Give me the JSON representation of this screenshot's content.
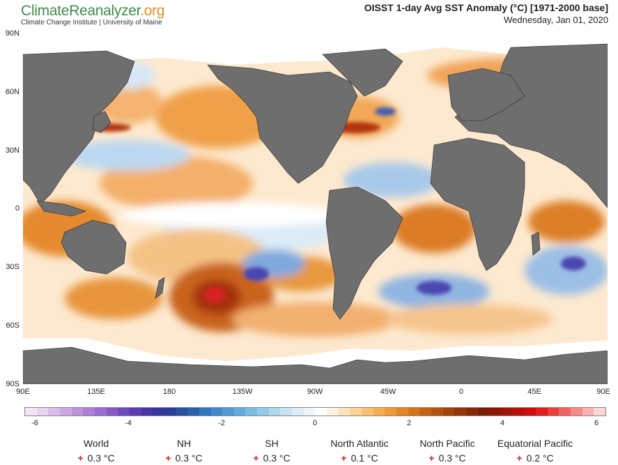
{
  "brand": {
    "part1": "ClimateReanalyzer",
    "part2": ".org",
    "subtitle": "Climate Change Institute | University of Maine"
  },
  "title": "OISST 1-day Avg SST Anomaly (°C) [1971-2000 base]",
  "date": "Wednesday, Jan 01, 2020",
  "map": {
    "lat_labels": [
      "90N",
      "60N",
      "30N",
      "0",
      "30S",
      "60S",
      "90S"
    ],
    "lon_labels": [
      "90E",
      "135E",
      "180",
      "135W",
      "90W",
      "45W",
      "0",
      "45E",
      "90E"
    ],
    "land_color": "#6e6e6e",
    "sea_ice_color": "#ffffff"
  },
  "colorbar": {
    "ticks": [
      "-6",
      "-4",
      "-2",
      "0",
      "2",
      "4",
      "6"
    ],
    "colors": [
      "#f5e6f7",
      "#ead2f1",
      "#dcbceb",
      "#cda7e4",
      "#bf92dd",
      "#ad7fd6",
      "#9a6ccf",
      "#8659c6",
      "#7048bd",
      "#5b3cb3",
      "#4735a8",
      "#36349e",
      "#2b3d9c",
      "#284ea5",
      "#2961b1",
      "#3174bf",
      "#3d88cb",
      "#4e9bd6",
      "#63adde",
      "#7bbde5",
      "#95cbea",
      "#aed8ef",
      "#c6e3f3",
      "#dcedf7",
      "#eef6fb",
      "#ffffff",
      "#fff2de",
      "#ffe3b8",
      "#fdd293",
      "#fbc16e",
      "#f7ae4f",
      "#f09a34",
      "#e48622",
      "#d67317",
      "#c6610f",
      "#b5510a",
      "#a44208",
      "#943406",
      "#872705",
      "#7c1c05",
      "#8f1605",
      "#a51206",
      "#bc0e08",
      "#d20c0c",
      "#e51a1a",
      "#ef3c3c",
      "#f56262",
      "#f98989",
      "#fcb0b0",
      "#fdd6d6"
    ]
  },
  "stats": [
    {
      "name": "World",
      "value": "0.3 °C"
    },
    {
      "name": "NH",
      "value": "0.3 °C"
    },
    {
      "name": "SH",
      "value": "0.3 °C"
    },
    {
      "name": "North Atlantic",
      "value": "0.1 °C"
    },
    {
      "name": "North Pacific",
      "value": "0.3 °C"
    },
    {
      "name": "Equatorial Pacific",
      "value": "0.2 °C"
    }
  ],
  "stat_sign": "+"
}
